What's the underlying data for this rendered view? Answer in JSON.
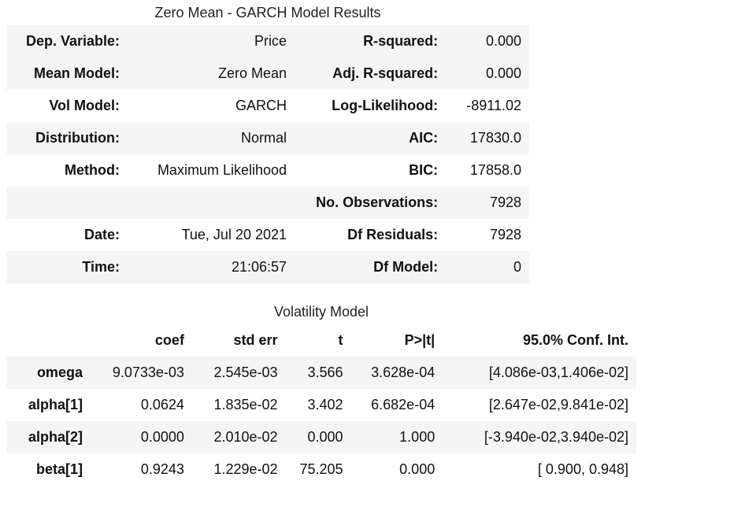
{
  "summary_caption": "Zero Mean - GARCH Model Results",
  "summary_rows": [
    {
      "k1": "Dep. Variable:",
      "v1": "Price",
      "k2": "R-squared:",
      "v2": "0.000"
    },
    {
      "k1": "Mean Model:",
      "v1": "Zero Mean",
      "k2": "Adj. R-squared:",
      "v2": "0.000"
    },
    {
      "k1": "Vol Model:",
      "v1": "GARCH",
      "k2": "Log-Likelihood:",
      "v2": "-8911.02"
    },
    {
      "k1": "Distribution:",
      "v1": "Normal",
      "k2": "AIC:",
      "v2": "17830.0"
    },
    {
      "k1": "Method:",
      "v1": "Maximum Likelihood",
      "k2": "BIC:",
      "v2": "17858.0"
    },
    {
      "k1": "",
      "v1": "",
      "k2": "No. Observations:",
      "v2": "7928"
    },
    {
      "k1": "Date:",
      "v1": "Tue, Jul 20 2021",
      "k2": "Df Residuals:",
      "v2": "7928"
    },
    {
      "k1": "Time:",
      "v1": "21:06:57",
      "k2": "Df Model:",
      "v2": "0"
    }
  ],
  "vol_caption": "Volatility Model",
  "vol_headers": [
    "",
    "coef",
    "std err",
    "t",
    "P>|t|",
    "95.0% Conf. Int."
  ],
  "vol_rows": [
    [
      "omega",
      "9.0733e-03",
      "2.545e-03",
      "3.566",
      "3.628e-04",
      "[4.086e-03,1.406e-02]"
    ],
    [
      "alpha[1]",
      "0.0624",
      "1.835e-02",
      "3.402",
      "6.682e-04",
      "[2.647e-02,9.841e-02]"
    ],
    [
      "alpha[2]",
      "0.0000",
      "2.010e-02",
      "0.000",
      "1.000",
      "[-3.940e-02,3.940e-02]"
    ],
    [
      "beta[1]",
      "0.9243",
      "1.229e-02",
      "75.205",
      "0.000",
      "[ 0.900, 0.948]"
    ]
  ]
}
